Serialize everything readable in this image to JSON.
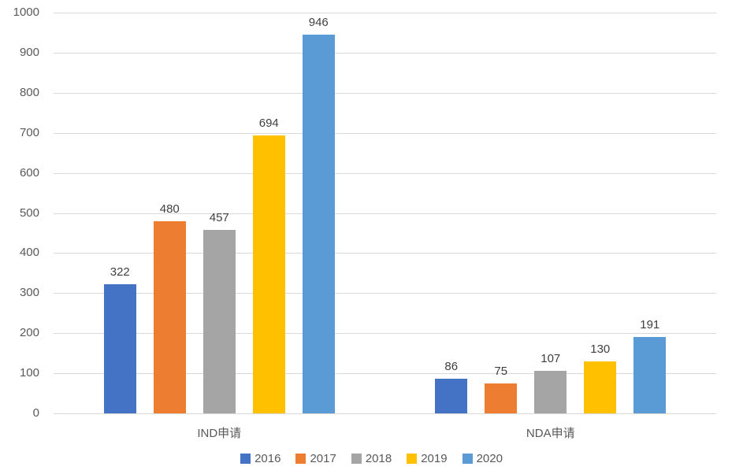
{
  "chart_data": {
    "type": "bar",
    "categories": [
      "IND申请",
      "NDA申请"
    ],
    "series": [
      {
        "name": "2016",
        "color": "#4472C4",
        "values": [
          322,
          86
        ]
      },
      {
        "name": "2017",
        "color": "#ED7D31",
        "values": [
          480,
          75
        ]
      },
      {
        "name": "2018",
        "color": "#A5A5A5",
        "values": [
          457,
          107
        ]
      },
      {
        "name": "2019",
        "color": "#FFC000",
        "values": [
          694,
          130
        ]
      },
      {
        "name": "2020",
        "color": "#5B9BD5",
        "values": [
          946,
          191
        ]
      }
    ],
    "title": "",
    "xlabel": "",
    "ylabel": "",
    "ylim": [
      0,
      1000
    ],
    "ytick_step": 100,
    "ytick_labels": [
      "0",
      "100",
      "200",
      "300",
      "400",
      "500",
      "600",
      "700",
      "800",
      "900",
      "1000"
    ],
    "grid": true,
    "legend_position": "bottom",
    "legend_entries": [
      "2016",
      "2017",
      "2018",
      "2019",
      "2020"
    ],
    "data_labels": {
      "IND申请": [
        322,
        480,
        457,
        694,
        946
      ],
      "NDA申请": [
        86,
        75,
        107,
        130,
        191
      ]
    },
    "colors": {
      "gridline": "#D9D9D9",
      "axis_line": "#D9D9D9",
      "tick_label": "#595959",
      "data_label": "#404040",
      "category_label": "#595959",
      "legend_label": "#595959",
      "background": "#FFFFFF"
    }
  }
}
